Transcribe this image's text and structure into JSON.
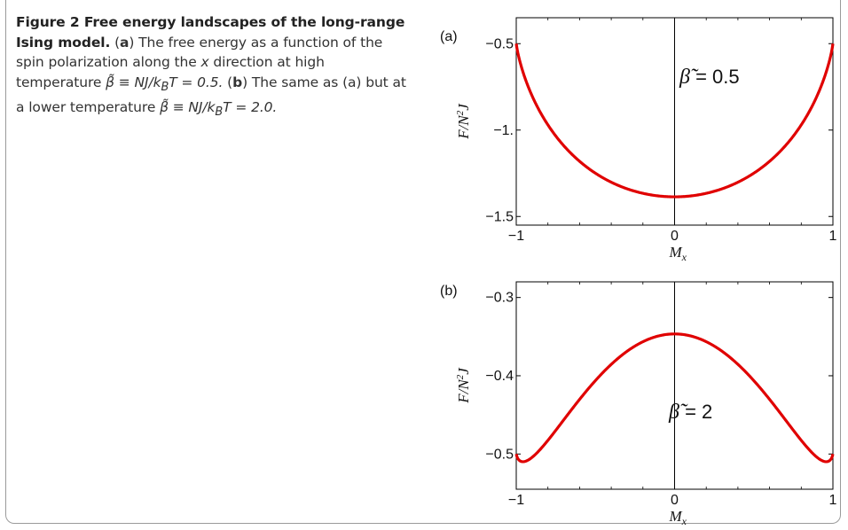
{
  "caption": {
    "title": "Figure 2  Free energy landscapes of the long-range Ising model.",
    "part_a_letter": "a",
    "part_a_text_1": " The free energy as a function of the spin polarization along the ",
    "part_a_italic_x": "x",
    "part_a_text_2": " direction at high temperature ",
    "part_a_formula": "β̃ ≡ NJ/k",
    "part_a_sub": "B",
    "part_a_formula_end": "T = 0.5.",
    "part_b_letter": "b",
    "part_b_text": " The same as (a) but at a lower temperature ",
    "part_b_formula": "β̃ ≡ NJ/k",
    "part_b_sub": "B",
    "part_b_formula_end": "T = 2.0."
  },
  "colors": {
    "curve": "#e00000",
    "axis": "#000000"
  },
  "chart_data": [
    {
      "type": "line",
      "panel_label": "(a)",
      "xlabel": "Mx",
      "ylabel": "F/N²J",
      "xlim": [
        -1,
        1
      ],
      "ylim": [
        -1.55,
        -0.35
      ],
      "xticks": [
        -1,
        0,
        1
      ],
      "xtick_labels": [
        "−1",
        "0",
        "1"
      ],
      "yticks": [
        -0.5,
        -1.0,
        -1.5
      ],
      "ytick_labels": [
        "−0.5",
        "−1.",
        "−1.5"
      ],
      "annotation": {
        "symbol": "β̃",
        "text": " = 0.5"
      },
      "beta": 0.5,
      "series": [
        {
          "x": [
            -1,
            -0.9,
            -0.8,
            -0.7,
            -0.6,
            -0.5,
            -0.4,
            -0.3,
            -0.2,
            -0.1,
            0,
            0.1,
            0.2,
            0.3,
            0.4,
            0.5,
            0.6,
            0.7,
            0.8,
            0.9,
            1
          ],
          "y": [
            -0.5,
            -0.857,
            -0.999,
            -1.092,
            -1.159,
            -1.206,
            -1.241,
            -1.266,
            -1.283,
            -1.293,
            -1.296,
            -1.293,
            -1.283,
            -1.266,
            -1.241,
            -1.206,
            -1.159,
            -1.092,
            -0.999,
            -0.857,
            -0.5
          ]
        }
      ]
    },
    {
      "type": "line",
      "panel_label": "(b)",
      "xlabel": "Mx",
      "ylabel": "F/N²J",
      "xlim": [
        -1,
        1
      ],
      "ylim": [
        -0.545,
        -0.28
      ],
      "xticks": [
        -1,
        0,
        1
      ],
      "xtick_labels": [
        "−1",
        "0",
        "1"
      ],
      "yticks": [
        -0.3,
        -0.4,
        -0.5
      ],
      "ytick_labels": [
        "−0.3",
        "−0.4",
        "−0.5"
      ],
      "annotation": {
        "symbol": "β̃",
        "text": " = 2"
      },
      "beta": 2,
      "series": [
        {
          "x": [
            -1,
            -0.9,
            -0.8,
            -0.7,
            -0.6,
            -0.5,
            -0.4,
            -0.3,
            -0.2,
            -0.1,
            0,
            0.1,
            0.2,
            0.3,
            0.4,
            0.5,
            0.6,
            0.7,
            0.8,
            0.9,
            1
          ],
          "y": [
            -0.5,
            -0.49,
            -0.474,
            -0.453,
            -0.431,
            -0.408,
            -0.387,
            -0.368,
            -0.352,
            -0.341,
            -0.337,
            -0.341,
            -0.352,
            -0.368,
            -0.387,
            -0.408,
            -0.431,
            -0.453,
            -0.474,
            -0.49,
            -0.5
          ]
        }
      ]
    }
  ]
}
